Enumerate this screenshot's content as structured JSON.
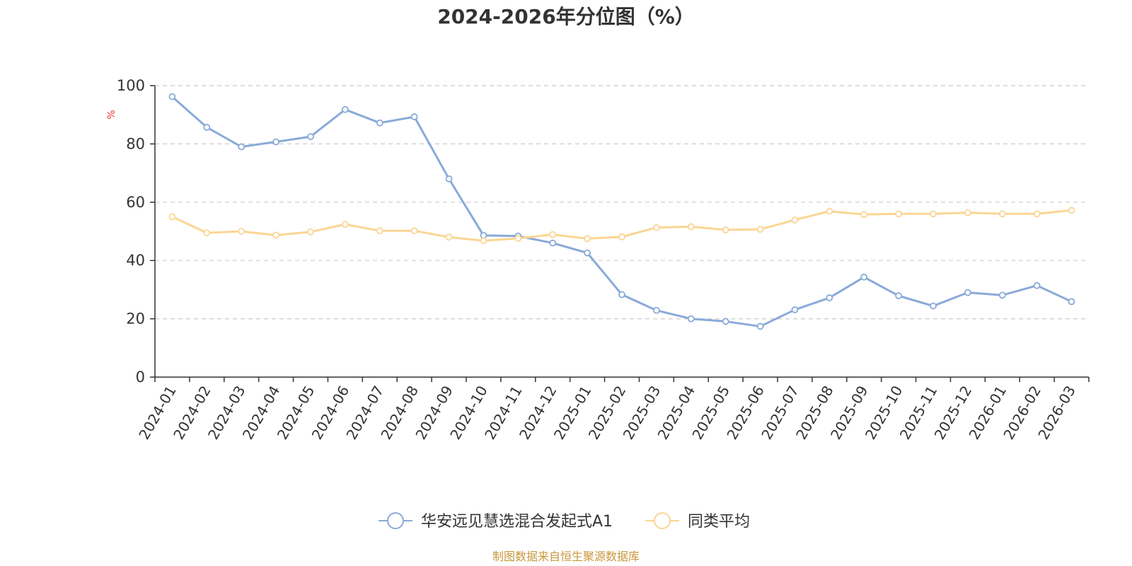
{
  "chart_data": {
    "type": "line",
    "title": "2024-2026年分位图（%）",
    "ylabel": "%",
    "ylim": [
      0,
      100
    ],
    "yticks": [
      0,
      20,
      40,
      60,
      80,
      100
    ],
    "grid": "horizontal-dashed",
    "legend_position": "bottom-center",
    "categories": [
      "2024-01",
      "2024-02",
      "2024-03",
      "2024-04",
      "2024-05",
      "2024-06",
      "2024-07",
      "2024-08",
      "2024-09",
      "2024-10",
      "2024-11",
      "2024-12",
      "2025-01",
      "2025-02",
      "2025-03",
      "2025-04",
      "2025-05",
      "2025-06",
      "2025-07",
      "2025-08",
      "2025-09",
      "2025-10",
      "2025-11",
      "2025-12",
      "2026-01",
      "2026-02",
      "2026-03"
    ],
    "series": [
      {
        "name": "华安远见慧选混合发起式A1",
        "color": "#8aaad8",
        "values": [
          96.2,
          85.7,
          79.0,
          80.7,
          82.5,
          91.8,
          87.2,
          89.3,
          68.0,
          48.6,
          48.4,
          46.0,
          42.6,
          28.3,
          22.9,
          20.0,
          19.1,
          17.4,
          23.1,
          27.2,
          34.3,
          27.9,
          24.4,
          29.0,
          28.1,
          31.4,
          25.9
        ]
      },
      {
        "name": "同类平均",
        "color": "#fbd594",
        "values": [
          55.0,
          49.5,
          50.0,
          48.7,
          49.8,
          52.4,
          50.2,
          50.2,
          48.0,
          46.8,
          47.6,
          48.9,
          47.5,
          48.1,
          51.3,
          51.6,
          50.5,
          50.7,
          53.9,
          56.9,
          55.8,
          56.0,
          56.0,
          56.4,
          56.0,
          56.0,
          57.2
        ]
      }
    ]
  },
  "footer": {
    "source": "制图数据来自恒生聚源数据库"
  },
  "colors": {
    "axis": "#333333",
    "grid": "#cccccc",
    "ylabel": "#e8392b",
    "source": "#c9963c"
  }
}
